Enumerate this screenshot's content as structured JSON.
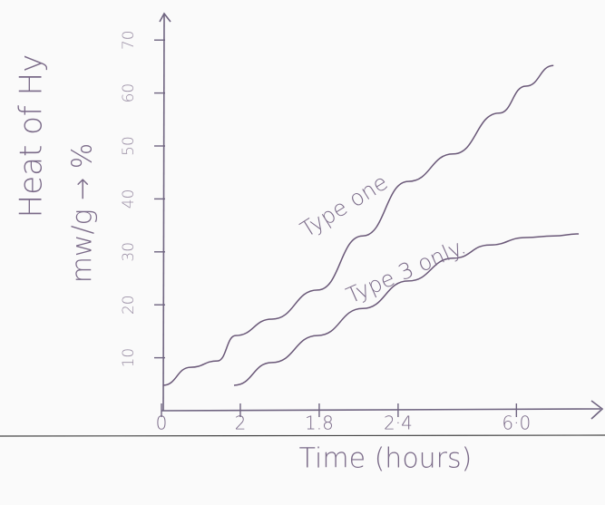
{
  "chart_data": {
    "type": "line",
    "xlabel": "Time (hours)",
    "ylabel_lines": [
      "Heat of Hy",
      "mw/g → %"
    ],
    "annotations": [
      "Type one",
      "Type 3 only."
    ],
    "xlim": [
      0,
      5.6
    ],
    "xticks": [
      0,
      {
        "value": 1,
        "label": "2"
      },
      {
        "value": 2,
        "label": "1.8"
      },
      {
        "value": 3,
        "label": "2·4"
      },
      {
        "value": 4.5,
        "label": "6·0"
      }
    ],
    "ylim": [
      0,
      75
    ],
    "yticks": [
      10,
      20,
      30,
      40,
      50,
      60,
      70
    ],
    "grid": false,
    "series": [
      {
        "name": "Type one",
        "color": "#6a5878",
        "x": [
          0.02,
          0.37,
          0.71,
          0.94,
          1.4,
          1.98,
          2.55,
          3.13,
          3.7,
          4.28,
          4.62,
          4.97
        ],
        "values": [
          4.8,
          8.2,
          9.4,
          14.2,
          17.3,
          22.8,
          33.0,
          43.3,
          48.5,
          56.2,
          61.3,
          65.2
        ]
      },
      {
        "name": "Type 3 only.",
        "color": "#6a5878",
        "x": [
          0.92,
          1.4,
          1.98,
          2.55,
          3.13,
          3.7,
          4.16,
          4.62,
          4.97,
          5.29
        ],
        "values": [
          4.8,
          9.1,
          14.2,
          19.3,
          24.5,
          28.8,
          31.3,
          32.7,
          33.0,
          33.4
        ]
      }
    ]
  }
}
